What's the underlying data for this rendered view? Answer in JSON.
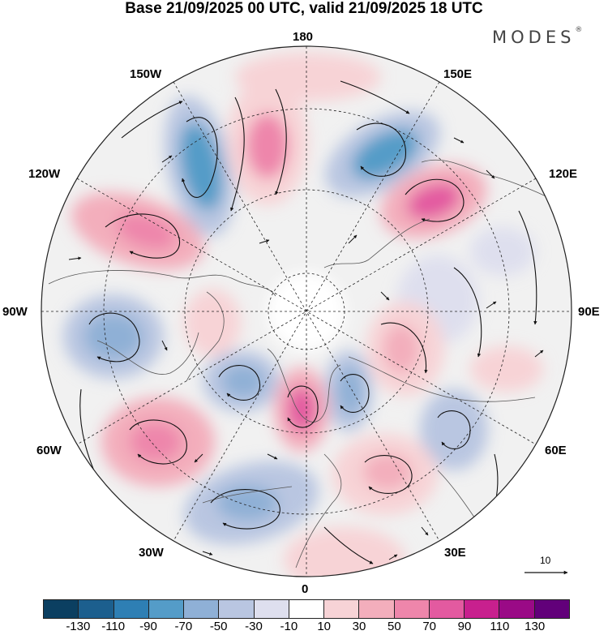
{
  "title": "Base 21/09/2025 00 UTC, valid 21/09/2025 18 UTC",
  "brand": {
    "name": "MODES",
    "mark": "®"
  },
  "map": {
    "projection": "north polar stereographic",
    "longitude_labels": {
      "top": "180",
      "top_left": "150W",
      "top_right": "150E",
      "upper_left": "120W",
      "upper_right": "120E",
      "left": "90W",
      "right": "90E",
      "lower_left": "60W",
      "lower_right": "60E",
      "bottom_left": "30W",
      "bottom_right": "30E",
      "bottom": "0"
    }
  },
  "vector_scale": {
    "value": "10"
  },
  "colorbar": {
    "colors": [
      "#0b3f61",
      "#1c5f8e",
      "#2e7fb4",
      "#549cc8",
      "#8fb0d6",
      "#b9c6e1",
      "#dedfee",
      "#ffffff",
      "#f7d3d6",
      "#f3aebc",
      "#ee86ab",
      "#e35aa0",
      "#c8208e",
      "#9a0a86",
      "#62007a"
    ],
    "ticks": [
      "-130",
      "-110",
      "-90",
      "-70",
      "-50",
      "-30",
      "-10",
      "10",
      "30",
      "50",
      "70",
      "90",
      "110",
      "130"
    ]
  }
}
